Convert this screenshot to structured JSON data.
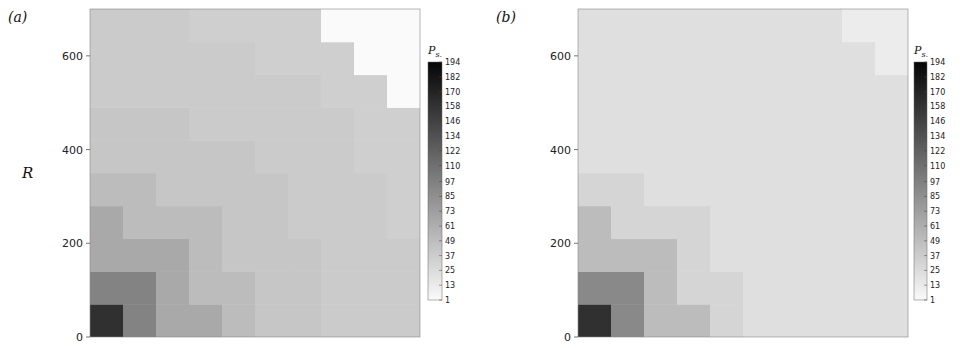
{
  "chart_data": [
    {
      "type": "heatmap",
      "panel_label": "(a)",
      "ylabel": "R",
      "xlim": [
        0,
        700
      ],
      "ylim": [
        0,
        700
      ],
      "yticks": [
        0,
        200,
        400,
        600
      ],
      "tick_labels": "y",
      "z": [
        [
          160,
          95,
          65,
          65,
          50,
          42,
          42,
          38,
          38,
          38
        ],
        [
          95,
          95,
          65,
          50,
          50,
          42,
          42,
          38,
          38,
          38
        ],
        [
          65,
          65,
          65,
          50,
          42,
          42,
          42,
          38,
          38,
          38
        ],
        [
          65,
          50,
          50,
          50,
          42,
          42,
          38,
          38,
          38,
          35
        ],
        [
          50,
          50,
          42,
          42,
          42,
          42,
          38,
          38,
          38,
          35
        ],
        [
          42,
          42,
          42,
          42,
          42,
          38,
          38,
          38,
          35,
          35
        ],
        [
          42,
          42,
          42,
          38,
          38,
          38,
          38,
          38,
          35,
          35
        ],
        [
          38,
          38,
          38,
          38,
          38,
          38,
          38,
          35,
          35,
          1
        ],
        [
          38,
          38,
          38,
          38,
          38,
          35,
          35,
          35,
          1,
          1
        ],
        [
          38,
          38,
          38,
          35,
          35,
          35,
          35,
          1,
          1,
          1
        ]
      ],
      "colorbar": {
        "label": "Ps.",
        "range": [
          1,
          194
        ],
        "ticks": [
          1,
          13,
          25,
          37,
          49,
          61,
          73,
          85,
          97,
          110,
          122,
          134,
          146,
          158,
          170,
          182,
          194
        ]
      }
    },
    {
      "type": "heatmap",
      "panel_label": "(b)",
      "xlim": [
        0,
        700
      ],
      "ylim": [
        0,
        700
      ],
      "yticks": [
        0,
        200,
        400,
        600
      ],
      "tick_labels": "y",
      "z": [
        [
          160,
          90,
          50,
          50,
          30,
          22,
          22,
          22,
          22,
          22
        ],
        [
          90,
          90,
          50,
          30,
          30,
          22,
          22,
          22,
          22,
          22
        ],
        [
          50,
          50,
          50,
          30,
          22,
          22,
          22,
          22,
          22,
          22
        ],
        [
          50,
          30,
          30,
          30,
          22,
          22,
          22,
          22,
          22,
          22
        ],
        [
          30,
          30,
          22,
          22,
          22,
          22,
          22,
          22,
          22,
          22
        ],
        [
          22,
          22,
          22,
          22,
          22,
          22,
          22,
          22,
          22,
          22
        ],
        [
          22,
          22,
          22,
          22,
          22,
          22,
          22,
          22,
          22,
          22
        ],
        [
          22,
          22,
          22,
          22,
          22,
          22,
          22,
          22,
          22,
          22
        ],
        [
          22,
          22,
          22,
          22,
          22,
          22,
          22,
          22,
          22,
          12
        ],
        [
          22,
          22,
          22,
          22,
          22,
          22,
          22,
          22,
          12,
          12
        ]
      ],
      "colorbar": {
        "label": "Ps.",
        "range": [
          1,
          194
        ],
        "ticks": [
          1,
          13,
          25,
          37,
          49,
          61,
          73,
          85,
          97,
          110,
          122,
          134,
          146,
          158,
          170,
          182,
          194
        ]
      }
    }
  ]
}
